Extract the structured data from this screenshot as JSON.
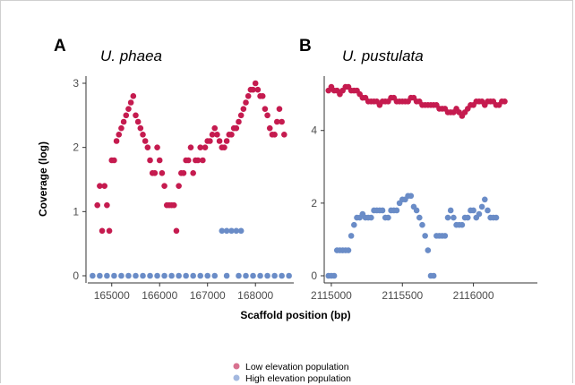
{
  "colors": {
    "low": "#c51b4f",
    "high": "#6a8cc7"
  },
  "chart_data": [
    {
      "panel": "A",
      "title": "U. phaea",
      "type": "scatter",
      "xlabel": "Scaffold position (bp)",
      "ylabel": "Coverage (log)",
      "xlim": [
        164500,
        168800
      ],
      "ylim": [
        0,
        3
      ],
      "xticks": [
        165000,
        166000,
        167000,
        168000
      ],
      "yticks": [
        0,
        1,
        2,
        3
      ],
      "series": [
        {
          "name": "Low elevation population",
          "points": [
            [
              164700,
              1.1
            ],
            [
              164750,
              1.4
            ],
            [
              164800,
              0.7
            ],
            [
              164850,
              1.4
            ],
            [
              164900,
              1.1
            ],
            [
              164950,
              0.7
            ],
            [
              165000,
              1.8
            ],
            [
              165050,
              1.8
            ],
            [
              165100,
              2.1
            ],
            [
              165150,
              2.2
            ],
            [
              165200,
              2.3
            ],
            [
              165250,
              2.4
            ],
            [
              165300,
              2.5
            ],
            [
              165350,
              2.6
            ],
            [
              165400,
              2.7
            ],
            [
              165450,
              2.8
            ],
            [
              165500,
              2.5
            ],
            [
              165550,
              2.4
            ],
            [
              165600,
              2.3
            ],
            [
              165650,
              2.2
            ],
            [
              165700,
              2.1
            ],
            [
              165750,
              2.0
            ],
            [
              165800,
              1.8
            ],
            [
              165850,
              1.6
            ],
            [
              165900,
              1.6
            ],
            [
              165950,
              2.0
            ],
            [
              166000,
              1.8
            ],
            [
              166050,
              1.6
            ],
            [
              166100,
              1.4
            ],
            [
              166150,
              1.1
            ],
            [
              166200,
              1.1
            ],
            [
              166250,
              1.1
            ],
            [
              166300,
              1.1
            ],
            [
              166350,
              0.7
            ],
            [
              166400,
              1.4
            ],
            [
              166450,
              1.6
            ],
            [
              166500,
              1.6
            ],
            [
              166550,
              1.8
            ],
            [
              166600,
              1.8
            ],
            [
              166650,
              2.0
            ],
            [
              166700,
              1.6
            ],
            [
              166750,
              1.8
            ],
            [
              166800,
              1.8
            ],
            [
              166850,
              2.0
            ],
            [
              166900,
              1.8
            ],
            [
              166950,
              2.0
            ],
            [
              167000,
              2.1
            ],
            [
              167050,
              2.1
            ],
            [
              167100,
              2.2
            ],
            [
              167150,
              2.3
            ],
            [
              167200,
              2.2
            ],
            [
              167250,
              2.1
            ],
            [
              167300,
              2.0
            ],
            [
              167350,
              2.0
            ],
            [
              167400,
              2.1
            ],
            [
              167450,
              2.2
            ],
            [
              167500,
              2.2
            ],
            [
              167550,
              2.3
            ],
            [
              167600,
              2.3
            ],
            [
              167650,
              2.4
            ],
            [
              167700,
              2.5
            ],
            [
              167750,
              2.6
            ],
            [
              167800,
              2.7
            ],
            [
              167850,
              2.8
            ],
            [
              167900,
              2.9
            ],
            [
              167950,
              2.9
            ],
            [
              168000,
              3.0
            ],
            [
              168050,
              2.9
            ],
            [
              168100,
              2.8
            ],
            [
              168150,
              2.8
            ],
            [
              168200,
              2.6
            ],
            [
              168250,
              2.5
            ],
            [
              168300,
              2.3
            ],
            [
              168350,
              2.2
            ],
            [
              168400,
              2.2
            ],
            [
              168450,
              2.4
            ],
            [
              168500,
              2.6
            ],
            [
              168550,
              2.4
            ],
            [
              168600,
              2.2
            ]
          ]
        },
        {
          "name": "High elevation population",
          "points": [
            [
              164600,
              0
            ],
            [
              164750,
              0
            ],
            [
              164900,
              0
            ],
            [
              165050,
              0
            ],
            [
              165200,
              0
            ],
            [
              165350,
              0
            ],
            [
              165500,
              0
            ],
            [
              165650,
              0
            ],
            [
              165800,
              0
            ],
            [
              165950,
              0
            ],
            [
              166100,
              0
            ],
            [
              166250,
              0
            ],
            [
              166400,
              0
            ],
            [
              166550,
              0
            ],
            [
              166700,
              0
            ],
            [
              166850,
              0
            ],
            [
              167000,
              0
            ],
            [
              167150,
              0
            ],
            [
              167300,
              0.7
            ],
            [
              167400,
              0.7
            ],
            [
              167500,
              0.7
            ],
            [
              167600,
              0.7
            ],
            [
              167700,
              0.7
            ],
            [
              167400,
              0
            ],
            [
              167650,
              0
            ],
            [
              167800,
              0
            ],
            [
              167950,
              0
            ],
            [
              168100,
              0
            ],
            [
              168250,
              0
            ],
            [
              168400,
              0
            ],
            [
              168550,
              0
            ],
            [
              168700,
              0
            ]
          ]
        }
      ]
    },
    {
      "panel": "B",
      "title": "U. pustulata",
      "type": "scatter",
      "xlabel": "Scaffold position (bp)",
      "ylabel": "",
      "xlim": [
        2114950,
        2116450
      ],
      "ylim": [
        0,
        5.3
      ],
      "xticks": [
        2115000,
        2115500,
        2116000
      ],
      "yticks": [
        0,
        2,
        4
      ],
      "series": [
        {
          "name": "Low elevation population",
          "points": [
            [
              2114980,
              5.1
            ],
            [
              2115000,
              5.2
            ],
            [
              2115020,
              5.1
            ],
            [
              2115040,
              5.1
            ],
            [
              2115060,
              5.0
            ],
            [
              2115080,
              5.1
            ],
            [
              2115100,
              5.2
            ],
            [
              2115120,
              5.2
            ],
            [
              2115140,
              5.1
            ],
            [
              2115160,
              5.1
            ],
            [
              2115180,
              5.1
            ],
            [
              2115200,
              5.0
            ],
            [
              2115220,
              4.9
            ],
            [
              2115240,
              4.9
            ],
            [
              2115260,
              4.8
            ],
            [
              2115280,
              4.8
            ],
            [
              2115300,
              4.8
            ],
            [
              2115320,
              4.8
            ],
            [
              2115340,
              4.7
            ],
            [
              2115360,
              4.8
            ],
            [
              2115380,
              4.8
            ],
            [
              2115400,
              4.8
            ],
            [
              2115420,
              4.9
            ],
            [
              2115440,
              4.9
            ],
            [
              2115460,
              4.8
            ],
            [
              2115480,
              4.8
            ],
            [
              2115500,
              4.8
            ],
            [
              2115520,
              4.8
            ],
            [
              2115540,
              4.8
            ],
            [
              2115560,
              4.9
            ],
            [
              2115580,
              4.9
            ],
            [
              2115600,
              4.8
            ],
            [
              2115620,
              4.8
            ],
            [
              2115640,
              4.7
            ],
            [
              2115660,
              4.7
            ],
            [
              2115680,
              4.7
            ],
            [
              2115700,
              4.7
            ],
            [
              2115720,
              4.7
            ],
            [
              2115740,
              4.7
            ],
            [
              2115760,
              4.6
            ],
            [
              2115780,
              4.6
            ],
            [
              2115800,
              4.6
            ],
            [
              2115820,
              4.5
            ],
            [
              2115840,
              4.5
            ],
            [
              2115860,
              4.5
            ],
            [
              2115880,
              4.6
            ],
            [
              2115900,
              4.5
            ],
            [
              2115920,
              4.4
            ],
            [
              2115940,
              4.5
            ],
            [
              2115960,
              4.6
            ],
            [
              2115980,
              4.7
            ],
            [
              2116000,
              4.7
            ],
            [
              2116020,
              4.8
            ],
            [
              2116040,
              4.8
            ],
            [
              2116060,
              4.8
            ],
            [
              2116080,
              4.7
            ],
            [
              2116100,
              4.8
            ],
            [
              2116120,
              4.8
            ],
            [
              2116140,
              4.8
            ],
            [
              2116160,
              4.7
            ],
            [
              2116180,
              4.7
            ],
            [
              2116200,
              4.8
            ],
            [
              2116220,
              4.8
            ]
          ]
        },
        {
          "name": "High elevation population",
          "points": [
            [
              2114980,
              0
            ],
            [
              2115000,
              0
            ],
            [
              2115020,
              0
            ],
            [
              2115040,
              0.7
            ],
            [
              2115060,
              0.7
            ],
            [
              2115080,
              0.7
            ],
            [
              2115100,
              0.7
            ],
            [
              2115120,
              0.7
            ],
            [
              2115140,
              1.1
            ],
            [
              2115160,
              1.4
            ],
            [
              2115180,
              1.6
            ],
            [
              2115200,
              1.6
            ],
            [
              2115220,
              1.7
            ],
            [
              2115240,
              1.6
            ],
            [
              2115260,
              1.6
            ],
            [
              2115280,
              1.6
            ],
            [
              2115300,
              1.8
            ],
            [
              2115320,
              1.8
            ],
            [
              2115340,
              1.8
            ],
            [
              2115360,
              1.8
            ],
            [
              2115380,
              1.6
            ],
            [
              2115400,
              1.6
            ],
            [
              2115420,
              1.8
            ],
            [
              2115440,
              1.8
            ],
            [
              2115460,
              1.8
            ],
            [
              2115480,
              2.0
            ],
            [
              2115500,
              2.1
            ],
            [
              2115520,
              2.1
            ],
            [
              2115540,
              2.2
            ],
            [
              2115560,
              2.2
            ],
            [
              2115580,
              1.9
            ],
            [
              2115600,
              1.8
            ],
            [
              2115620,
              1.6
            ],
            [
              2115640,
              1.4
            ],
            [
              2115660,
              1.1
            ],
            [
              2115680,
              0.7
            ],
            [
              2115700,
              0
            ],
            [
              2115720,
              0
            ],
            [
              2115740,
              1.1
            ],
            [
              2115760,
              1.1
            ],
            [
              2115780,
              1.1
            ],
            [
              2115800,
              1.1
            ],
            [
              2115820,
              1.6
            ],
            [
              2115840,
              1.8
            ],
            [
              2115860,
              1.6
            ],
            [
              2115880,
              1.4
            ],
            [
              2115900,
              1.4
            ],
            [
              2115920,
              1.4
            ],
            [
              2115940,
              1.6
            ],
            [
              2115960,
              1.6
            ],
            [
              2115980,
              1.8
            ],
            [
              2116000,
              1.8
            ],
            [
              2116020,
              1.6
            ],
            [
              2116040,
              1.7
            ],
            [
              2116060,
              1.9
            ],
            [
              2116080,
              2.1
            ],
            [
              2116100,
              1.8
            ],
            [
              2116120,
              1.6
            ],
            [
              2116140,
              1.6
            ],
            [
              2116160,
              1.6
            ]
          ]
        }
      ]
    }
  ],
  "shared": {
    "xlabel": "Scaffold position (bp)",
    "legend": [
      {
        "label": "Low elevation population",
        "color": "#d8718f"
      },
      {
        "label": "High elevation population",
        "color": "#a3b8df"
      }
    ]
  }
}
